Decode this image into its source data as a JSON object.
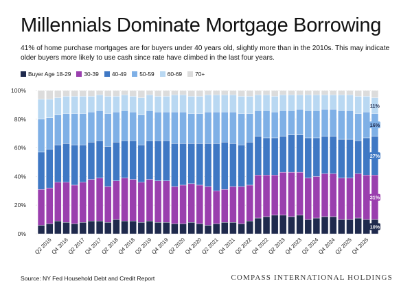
{
  "title": "Millennials Dominate Mortgage Borrowing",
  "subtitle": "41% of home purchase mortgages are for buyers under 40 years old, slightly more than in the 2010s. This may indicate older buyers more likely to use cash since rate have climbed in the last four years.",
  "source": "Source: NY Fed Household Debt and Credit Report",
  "brand": "COMPASS INTERNATIONAL HOLDINGS",
  "chart_data": {
    "type": "bar",
    "stacked": true,
    "ylim": [
      0,
      100
    ],
    "y_ticks": [
      "0%",
      "20%",
      "40%",
      "60%",
      "80%",
      "100%"
    ],
    "grid": true,
    "legend_position": "top-left",
    "x_tick_labels": [
      "Q2 2016",
      "Q4 2016",
      "Q2 2017",
      "Q4 2017",
      "Q2 2018",
      "Q4 2018",
      "Q2 2019",
      "Q4 2019",
      "Q2 2020",
      "Q4 2020",
      "Q2 2021",
      "Q4 2021",
      "Q2 2022",
      "Q4 2022",
      "Q2 2023",
      "Q4 2023",
      "Q2 2024",
      "Q4 2024",
      "Q2 2025",
      "Q4 2025",
      "Q2 2026"
    ],
    "categories": [
      "Q1 2016",
      "Q2 2016",
      "Q3 2016",
      "Q4 2016",
      "Q1 2017",
      "Q2 2017",
      "Q3 2017",
      "Q4 2017",
      "Q1 2018",
      "Q2 2018",
      "Q3 2018",
      "Q4 2018",
      "Q1 2019",
      "Q2 2019",
      "Q3 2019",
      "Q4 2019",
      "Q1 2020",
      "Q2 2020",
      "Q3 2020",
      "Q4 2020",
      "Q1 2021",
      "Q2 2021",
      "Q3 2021",
      "Q4 2021",
      "Q1 2022",
      "Q2 2022",
      "Q3 2022",
      "Q4 2022",
      "Q1 2023",
      "Q2 2023",
      "Q3 2023",
      "Q4 2023",
      "Q1 2024",
      "Q2 2024",
      "Q3 2024",
      "Q4 2024",
      "Q1 2025",
      "Q2 2025",
      "Q3 2025",
      "Q4 2025",
      "Q1 2026"
    ],
    "series": [
      {
        "name": "Buyer Age 18-29",
        "color": "#1f2a4d",
        "values": [
          6,
          7,
          9,
          8,
          7,
          8,
          9,
          9,
          8,
          10,
          9,
          9,
          8,
          9,
          8,
          8,
          7,
          7,
          8,
          7,
          6,
          7,
          8,
          8,
          7,
          9,
          11,
          12,
          13,
          13,
          12,
          13,
          10,
          11,
          12,
          12,
          10,
          10,
          11,
          10,
          10
        ]
      },
      {
        "name": "30-39",
        "color": "#9a3fae",
        "values": [
          25,
          25,
          27,
          28,
          27,
          28,
          29,
          30,
          25,
          27,
          30,
          29,
          28,
          29,
          29,
          29,
          26,
          27,
          27,
          27,
          27,
          23,
          23,
          25,
          26,
          25,
          30,
          29,
          28,
          30,
          31,
          30,
          29,
          29,
          30,
          30,
          29,
          29,
          31,
          31,
          31
        ]
      },
      {
        "name": "40-49",
        "color": "#3f78c4",
        "values": [
          26,
          27,
          26,
          27,
          28,
          26,
          26,
          26,
          28,
          27,
          26,
          27,
          26,
          27,
          28,
          28,
          30,
          29,
          28,
          29,
          30,
          33,
          33,
          30,
          29,
          30,
          27,
          26,
          26,
          25,
          26,
          26,
          28,
          27,
          26,
          26,
          27,
          27,
          23,
          26,
          27
        ]
      },
      {
        "name": "50-59",
        "color": "#7fb0e6",
        "values": [
          23,
          22,
          21,
          21,
          22,
          22,
          21,
          21,
          23,
          21,
          21,
          20,
          21,
          21,
          20,
          20,
          22,
          22,
          21,
          21,
          22,
          22,
          21,
          22,
          22,
          20,
          18,
          19,
          18,
          18,
          17,
          18,
          19,
          19,
          19,
          19,
          20,
          20,
          19,
          18,
          16
        ]
      },
      {
        "name": "60-69",
        "color": "#b9d8f2",
        "values": [
          14,
          13,
          12,
          12,
          12,
          12,
          11,
          11,
          12,
          11,
          11,
          11,
          12,
          11,
          11,
          11,
          12,
          12,
          12,
          12,
          12,
          12,
          12,
          12,
          12,
          12,
          11,
          11,
          11,
          11,
          11,
          10,
          11,
          11,
          10,
          10,
          11,
          11,
          12,
          11,
          11
        ]
      },
      {
        "name": "70+",
        "color": "#dcdcdc",
        "values": [
          6,
          6,
          5,
          4,
          4,
          4,
          4,
          3,
          4,
          4,
          3,
          4,
          5,
          3,
          4,
          4,
          3,
          3,
          4,
          4,
          3,
          3,
          3,
          3,
          4,
          4,
          3,
          3,
          4,
          3,
          3,
          3,
          3,
          3,
          3,
          3,
          3,
          3,
          4,
          4,
          5
        ]
      }
    ],
    "end_labels": [
      "10%",
      "31%",
      "27%",
      "16%",
      "11%"
    ]
  }
}
